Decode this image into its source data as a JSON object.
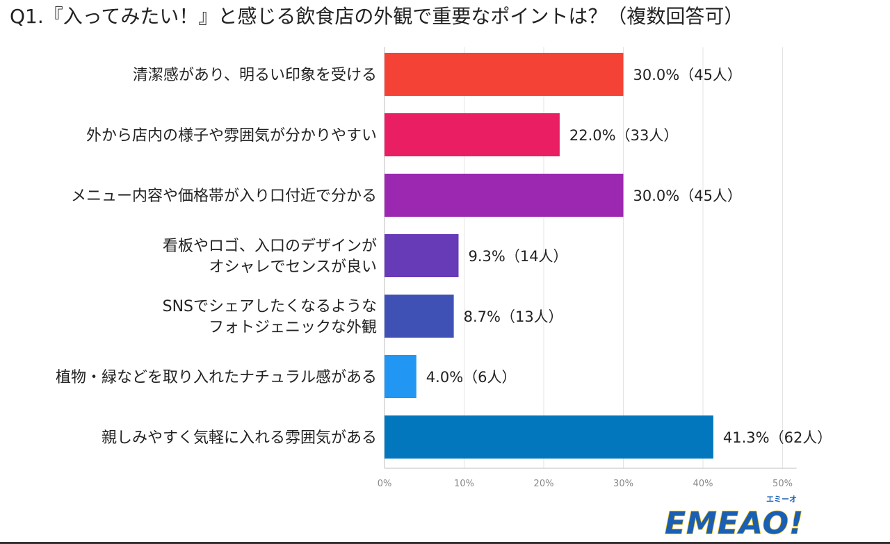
{
  "title": "Q1.『入ってみたい！』と感じる飲食店の外観で重要なポイントは？（複数回答可）",
  "chart_data": {
    "type": "bar",
    "orientation": "horizontal",
    "categories": [
      [
        "清潔感があり、明るい印象を受ける"
      ],
      [
        "外から店内の様子や雰囲気が分かりやすい"
      ],
      [
        "メニュー内容や価格帯が入り口付近で分かる"
      ],
      [
        "看板やロゴ、入口のデザインが",
        "オシャレでセンスが良い"
      ],
      [
        "SNSでシェアしたくなるような",
        "フォトジェニックな外観"
      ],
      [
        "植物・緑などを取り入れたナチュラル感がある"
      ],
      [
        "親しみやすく気軽に入れる雰囲気がある"
      ]
    ],
    "values": [
      30.0,
      22.0,
      30.0,
      9.3,
      8.7,
      4.0,
      41.3
    ],
    "value_labels": [
      "30.0%（45人）",
      "22.0%（33人）",
      "30.0%（45人）",
      "9.3%（14人）",
      "8.7%（13人）",
      "4.0%（6人）",
      "41.3%（62人）"
    ],
    "colors": [
      "#f44336",
      "#e91e63",
      "#9c27b0",
      "#673ab7",
      "#3f51b5",
      "#2196f3",
      "#0277bd"
    ],
    "xlim": [
      0,
      50
    ],
    "ticks": [
      "0%",
      "10%",
      "20%",
      "30%",
      "40%",
      "50%"
    ],
    "grid": true
  },
  "logo": {
    "name": "emeao-logo",
    "text": "EMEAO!",
    "subtext": "エミーオ",
    "color": "#1a5fb4",
    "accent": "#f5c400"
  }
}
